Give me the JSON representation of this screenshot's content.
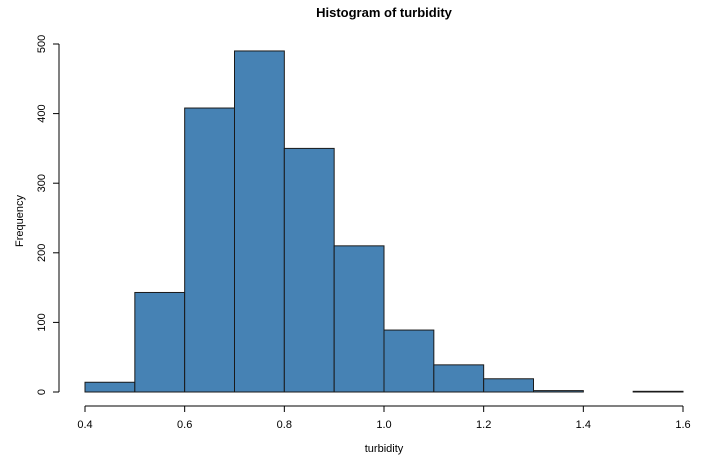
{
  "chart_data": {
    "type": "bar",
    "title": "Histogram of turbidity",
    "xlabel": "turbidity",
    "ylabel": "Frequency",
    "xlim": [
      0.4,
      1.6
    ],
    "ylim": [
      0,
      500
    ],
    "x_ticks": [
      0.4,
      0.6,
      0.8,
      1.0,
      1.2,
      1.4,
      1.6
    ],
    "x_tick_labels": [
      "0.4",
      "0.6",
      "0.8",
      "1.0",
      "1.2",
      "1.4",
      "1.6"
    ],
    "y_ticks": [
      0,
      100,
      200,
      300,
      400,
      500
    ],
    "y_tick_labels": [
      "0",
      "100",
      "200",
      "300",
      "400",
      "500"
    ],
    "bins": [
      {
        "start": 0.4,
        "end": 0.5,
        "value": 14
      },
      {
        "start": 0.5,
        "end": 0.6,
        "value": 143
      },
      {
        "start": 0.6,
        "end": 0.7,
        "value": 408
      },
      {
        "start": 0.7,
        "end": 0.8,
        "value": 490
      },
      {
        "start": 0.8,
        "end": 0.9,
        "value": 350
      },
      {
        "start": 0.9,
        "end": 1.0,
        "value": 210
      },
      {
        "start": 1.0,
        "end": 1.1,
        "value": 89
      },
      {
        "start": 1.1,
        "end": 1.2,
        "value": 39
      },
      {
        "start": 1.2,
        "end": 1.3,
        "value": 19
      },
      {
        "start": 1.3,
        "end": 1.4,
        "value": 2
      },
      {
        "start": 1.4,
        "end": 1.5,
        "value": 0
      },
      {
        "start": 1.5,
        "end": 1.6,
        "value": 1
      }
    ],
    "bar_color": "#4682b4",
    "grid": false,
    "legend": "none"
  }
}
